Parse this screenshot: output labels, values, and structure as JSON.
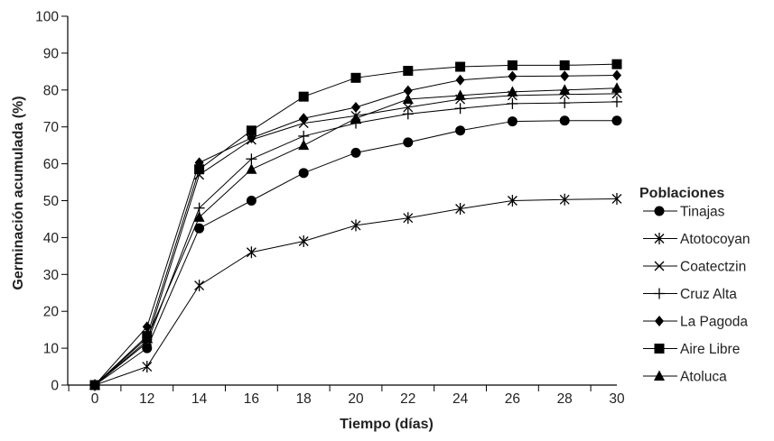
{
  "chart_data": {
    "type": "line",
    "title": "",
    "xlabel": "Tiempo (días)",
    "ylabel": "Germinación acumulada (%)",
    "x": [
      0,
      12,
      14,
      16,
      18,
      20,
      22,
      24,
      26,
      28,
      30
    ],
    "xticks": [
      "0",
      "12",
      "14",
      "16",
      "18",
      "20",
      "22",
      "24",
      "26",
      "28",
      "30"
    ],
    "yticks": [
      "0",
      "10",
      "20",
      "30",
      "40",
      "50",
      "60",
      "70",
      "80",
      "90",
      "100"
    ],
    "ylim": [
      0,
      100
    ],
    "grid": false,
    "legend_title": "Poblaciones",
    "legend_position": "right",
    "series": [
      {
        "name": "Tinajas",
        "marker": "circle",
        "values": [
          0,
          10,
          42.5,
          50,
          57.5,
          63,
          65.8,
          69,
          71.5,
          71.7,
          71.7
        ]
      },
      {
        "name": "Atotocoyan",
        "marker": "asterisk",
        "values": [
          0,
          5,
          27,
          36,
          39,
          43.3,
          45.3,
          47.8,
          50,
          50.3,
          50.5
        ]
      },
      {
        "name": "Coatectzin",
        "marker": "x",
        "values": [
          0,
          12,
          57,
          66.5,
          71,
          73,
          75.3,
          77.5,
          78.5,
          78.8,
          79
        ]
      },
      {
        "name": "Cruz Alta",
        "marker": "plus",
        "values": [
          0,
          11.5,
          48,
          61.3,
          67.5,
          71,
          73.5,
          75,
          76.3,
          76.5,
          76.8
        ]
      },
      {
        "name": "La Pagoda",
        "marker": "diamond",
        "values": [
          0,
          15.8,
          60.3,
          67,
          72.3,
          75.3,
          79.8,
          82.7,
          83.7,
          83.8,
          84
        ]
      },
      {
        "name": "Aire Libre",
        "marker": "square",
        "values": [
          0,
          13.3,
          58.5,
          69,
          78.2,
          83.3,
          85.2,
          86.3,
          86.7,
          86.7,
          87
        ]
      },
      {
        "name": "Atoluca",
        "marker": "triangle",
        "values": [
          0,
          12.8,
          45.5,
          58.5,
          65,
          72.3,
          77.5,
          78.5,
          79.5,
          80,
          80.5
        ]
      }
    ]
  }
}
